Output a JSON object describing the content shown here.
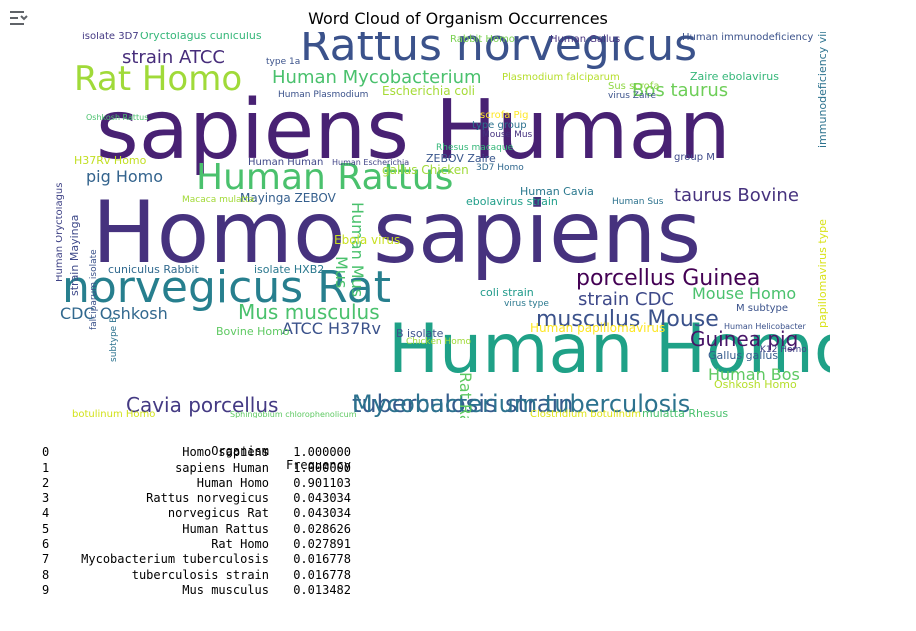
{
  "title": "Word Cloud of Organism Occurrences",
  "icons": {
    "output_toggle": "output-collapse-icon"
  },
  "table": {
    "headers": [
      "Organism",
      "Frequency"
    ],
    "rows": [
      {
        "idx": "0",
        "organism": "Homo sapiens",
        "frequency": "1.000000"
      },
      {
        "idx": "1",
        "organism": "sapiens Human",
        "frequency": "1.000000"
      },
      {
        "idx": "2",
        "organism": "Human Homo",
        "frequency": "0.901103"
      },
      {
        "idx": "3",
        "organism": "Rattus norvegicus",
        "frequency": "0.043034"
      },
      {
        "idx": "4",
        "organism": "norvegicus Rat",
        "frequency": "0.043034"
      },
      {
        "idx": "5",
        "organism": "Human Rattus",
        "frequency": "0.028626"
      },
      {
        "idx": "6",
        "organism": "Rat Homo",
        "frequency": "0.027891"
      },
      {
        "idx": "7",
        "organism": "Mycobacterium tuberculosis",
        "frequency": "0.016778"
      },
      {
        "idx": "8",
        "organism": "tuberculosis strain",
        "frequency": "0.016778"
      },
      {
        "idx": "9",
        "organism": "Mus musculus",
        "frequency": "0.013482"
      }
    ]
  },
  "cloud_words": [
    {
      "text": "Homo sapiens",
      "color": "#46327e"
    },
    {
      "text": "sapiens Human",
      "color": "#482173"
    },
    {
      "text": "Human Homo",
      "color": "#1fa187"
    },
    {
      "text": "Rattus norvegicus",
      "color": "#3b528b"
    },
    {
      "text": "norvegicus Rat",
      "color": "#277f8e"
    },
    {
      "text": "Human Rattus",
      "color": "#4ac16d"
    },
    {
      "text": "Rat Homo",
      "color": "#a0da39"
    },
    {
      "text": "tuberculosis strain",
      "color": "#365c8d"
    },
    {
      "text": "Mycobacterium tuberculosis",
      "color": "#2c728e"
    },
    {
      "text": "Mus musculus",
      "color": "#4ac16d"
    },
    {
      "text": "musculus Mouse",
      "color": "#3b528b"
    },
    {
      "text": "Cavia porcellus",
      "color": "#443a83"
    },
    {
      "text": "porcellus Guinea",
      "color": "#440154"
    },
    {
      "text": "Guinea pig",
      "color": "#481668"
    },
    {
      "text": "Human Mycobacterium",
      "color": "#4ac16d"
    },
    {
      "text": "strain ATCC",
      "color": "#472d7b"
    },
    {
      "text": "Bos taurus",
      "color": "#6ece58"
    },
    {
      "text": "taurus Bovine",
      "color": "#46327e"
    },
    {
      "text": "pig Homo",
      "color": "#33638d"
    },
    {
      "text": "CDC Oshkosh",
      "color": "#31688e"
    },
    {
      "text": "ATCC H37Rv",
      "color": "#3b528b"
    },
    {
      "text": "strain CDC",
      "color": "#3e4989"
    },
    {
      "text": "Mouse Homo",
      "color": "#4ac16d"
    },
    {
      "text": "Human Bos",
      "color": "#5ec962"
    },
    {
      "text": "Mus",
      "color": "#4ac16d"
    },
    {
      "text": "Rat Rattus",
      "color": "#5ec962"
    },
    {
      "text": "Human Mus",
      "color": "#4ac16d"
    },
    {
      "text": "Oryctolagus cuniculus",
      "color": "#35b779"
    },
    {
      "text": "Zaire ebolavirus",
      "color": "#35b779"
    },
    {
      "text": "Human Plasmodium",
      "color": "#3b528b"
    },
    {
      "text": "Escherichia coli",
      "color": "#a5db36"
    },
    {
      "text": "Plasmodium falciparum",
      "color": "#b5de2b"
    },
    {
      "text": "Human Gallus",
      "color": "#46327e"
    },
    {
      "text": "Rabbit Homo",
      "color": "#7ad151"
    },
    {
      "text": "Human immunodeficiency",
      "color": "#3b528b"
    },
    {
      "text": "immunodeficiency virus",
      "color": "#2c728e"
    },
    {
      "text": "papillomavirus type",
      "color": "#d8e219"
    },
    {
      "text": "Human papillomavirus",
      "color": "#fde725"
    },
    {
      "text": "Gallus gallus",
      "color": "#365c8d"
    },
    {
      "text": "Oshkosh Homo",
      "color": "#b5de2b"
    },
    {
      "text": "botulinum Homo",
      "color": "#d2e21b"
    },
    {
      "text": "Sphingobium chlorophenolicum",
      "color": "#5ec962"
    },
    {
      "text": "Clostridium botulinum",
      "color": "#dde318"
    },
    {
      "text": "mulatta Rhesus",
      "color": "#4ac16d"
    },
    {
      "text": "Mayinga ZEBOV",
      "color": "#355f8d"
    },
    {
      "text": "cuniculus Rabbit",
      "color": "#30698e"
    },
    {
      "text": "isolate HXB2",
      "color": "#2a788e"
    },
    {
      "text": "ebolavirus strain",
      "color": "#1f9e89"
    },
    {
      "text": "gallus Chicken",
      "color": "#a0da39"
    },
    {
      "text": "H37Rv Homo",
      "color": "#c2df23"
    },
    {
      "text": "Human Cavia",
      "color": "#2a788e"
    },
    {
      "text": "coli strain",
      "color": "#1f9a8a"
    },
    {
      "text": "Ebola virus",
      "color": "#c8e020"
    },
    {
      "text": "ZEBOV Zaire",
      "color": "#39568c"
    },
    {
      "text": "Human Human",
      "color": "#3f4788"
    },
    {
      "text": "Human Escherichia",
      "color": "#414487"
    },
    {
      "text": "Macaca mulatta",
      "color": "#a2da37"
    },
    {
      "text": "Bovine Homo",
      "color": "#5ec962"
    },
    {
      "text": "B isolate",
      "color": "#3b528b"
    },
    {
      "text": "3D7 Homo",
      "color": "#31688e"
    },
    {
      "text": "Rhesus macaque",
      "color": "#35b779"
    },
    {
      "text": "type group",
      "color": "#2c728e"
    },
    {
      "text": "Mouse Mus",
      "color": "#46327e"
    },
    {
      "text": "scrofa Pig",
      "color": "#fde725"
    },
    {
      "text": "Sus scrofa",
      "color": "#8fd744"
    },
    {
      "text": "virus Zaire",
      "color": "#3b528b"
    },
    {
      "text": "K12 Homo",
      "color": "#414487"
    },
    {
      "text": "M subtype",
      "color": "#3b528b"
    },
    {
      "text": "group M",
      "color": "#3e4989"
    },
    {
      "text": "Chicken Homo",
      "color": "#a0da39"
    },
    {
      "text": "isolate 3D7",
      "color": "#443983"
    },
    {
      "text": "type 1a",
      "color": "#3b528b"
    },
    {
      "text": "Oshkosh Rattus",
      "color": "#4ac16d"
    },
    {
      "text": "strain Mayinga",
      "color": "#3e4989"
    },
    {
      "text": "falciparum isolate",
      "color": "#3b528b"
    },
    {
      "text": "subtype B",
      "color": "#2c728e"
    },
    {
      "text": "virus type",
      "color": "#2a788e"
    },
    {
      "text": "Human Oryctolagus",
      "color": "#414487"
    },
    {
      "text": "Human Helicobacter",
      "color": "#3b528b"
    },
    {
      "text": "Human Sus",
      "color": "#2c728e"
    }
  ]
}
